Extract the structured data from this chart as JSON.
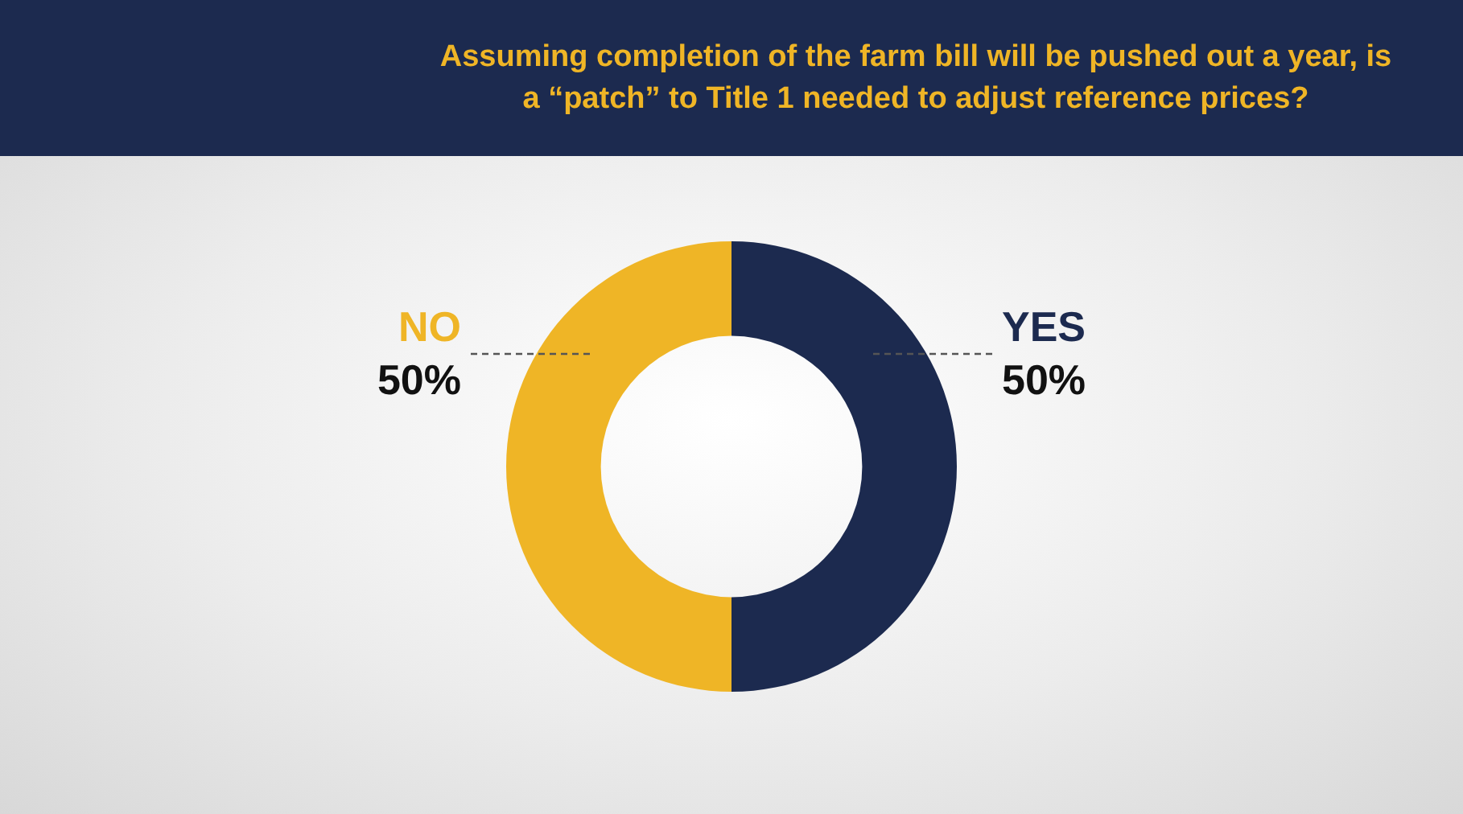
{
  "chart_data": {
    "type": "donut",
    "title": "Assuming completion of the farm bill will be pushed out a year, is a “patch” to Title 1 needed to adjust reference prices?",
    "categories": [
      "YES",
      "NO"
    ],
    "values": [
      50,
      50
    ],
    "colors": [
      "#1c2a4f",
      "#efb526"
    ],
    "value_labels": [
      "50%",
      "50%"
    ],
    "legend": false
  }
}
